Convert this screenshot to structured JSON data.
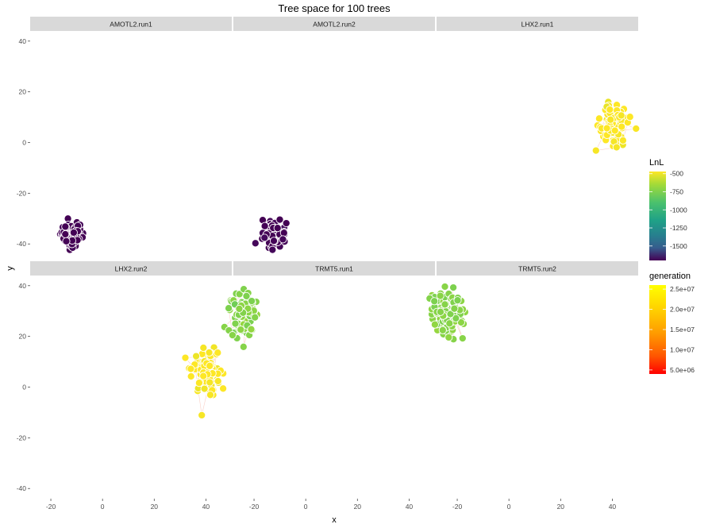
{
  "chart_data": {
    "type": "scatter",
    "title": "Tree space for 100 trees",
    "xlabel": "x",
    "ylabel": "y",
    "xlim": [
      -28,
      50
    ],
    "ylim": [
      -44,
      44
    ],
    "x_ticks": [
      -20,
      0,
      20,
      40
    ],
    "y_ticks": [
      -40,
      -20,
      0,
      20,
      40
    ],
    "grid": false,
    "layout": "facet_wrap 2 rows x 3 columns",
    "panels": [
      {
        "label": "AMOTL2.run1",
        "center": [
          -12,
          -36
        ],
        "spread": [
          2.2,
          2.4
        ],
        "lnl": -1700,
        "points": 100
      },
      {
        "label": "AMOTL2.run2",
        "center": [
          -12,
          -36
        ],
        "spread": [
          2.2,
          2.4
        ],
        "lnl": -1700,
        "points": 100
      },
      {
        "label": "LHX2.run1",
        "center": [
          40,
          7
        ],
        "spread": [
          2.8,
          4.0
        ],
        "lnl": -470,
        "points": 100
      },
      {
        "label": "LHX2.run2",
        "center": [
          40,
          7
        ],
        "spread": [
          2.8,
          4.5
        ],
        "lnl": -470,
        "points": 100
      },
      {
        "label": "TRMT5.run1",
        "center": [
          -24,
          29
        ],
        "spread": [
          3.0,
          4.5
        ],
        "lnl": -700,
        "points": 100
      },
      {
        "label": "TRMT5.run2",
        "center": [
          -24,
          29
        ],
        "spread": [
          3.0,
          4.5
        ],
        "lnl": -700,
        "points": 100
      }
    ],
    "legends": [
      {
        "title": "LnL",
        "palette": "viridis",
        "range": [
          -1700,
          -470
        ],
        "labels": [
          "-500",
          "-750",
          "-1000",
          "-1250",
          "-1500"
        ],
        "values": [
          -500,
          -750,
          -1000,
          -1250,
          -1500
        ],
        "position": "right"
      },
      {
        "title": "generation",
        "palette": "red-orange-yellow",
        "range": [
          4000000,
          26000000
        ],
        "labels": [
          "2.5e+07",
          "2.0e+07",
          "1.5e+07",
          "1.0e+07",
          "5.0e+06"
        ],
        "values": [
          25000000,
          20000000,
          15000000,
          10000000,
          5000000
        ],
        "position": "right"
      }
    ],
    "colors": {
      "strip_bg": "#d9d9d9",
      "point_stroke": "#ffffff",
      "path_color": "#f5b0a0"
    }
  }
}
